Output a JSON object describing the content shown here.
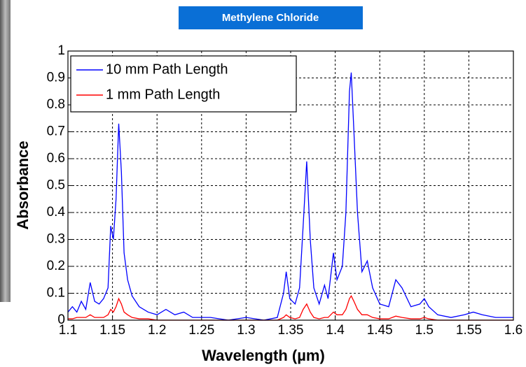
{
  "chart_data": {
    "type": "line",
    "title": "Methylene Chloride",
    "xlabel": "Wavelength (µm)",
    "ylabel": "Absorbance",
    "xlim": [
      1.1,
      1.6
    ],
    "ylim": [
      0,
      1
    ],
    "xticks": [
      1.1,
      1.15,
      1.2,
      1.25,
      1.3,
      1.35,
      1.4,
      1.45,
      1.5,
      1.55,
      1.6
    ],
    "yticks": [
      0,
      0.1,
      0.2,
      0.3,
      0.4,
      0.5,
      0.6,
      0.7,
      0.8,
      0.9,
      1
    ],
    "grid": true,
    "legend": "upper-left",
    "x": [
      1.1,
      1.105,
      1.11,
      1.115,
      1.12,
      1.125,
      1.13,
      1.135,
      1.14,
      1.145,
      1.148,
      1.151,
      1.154,
      1.157,
      1.16,
      1.163,
      1.167,
      1.172,
      1.18,
      1.19,
      1.2,
      1.21,
      1.22,
      1.23,
      1.24,
      1.26,
      1.28,
      1.3,
      1.32,
      1.335,
      1.342,
      1.345,
      1.349,
      1.355,
      1.36,
      1.364,
      1.368,
      1.372,
      1.376,
      1.382,
      1.388,
      1.392,
      1.398,
      1.402,
      1.408,
      1.412,
      1.416,
      1.418,
      1.421,
      1.425,
      1.43,
      1.436,
      1.442,
      1.45,
      1.46,
      1.468,
      1.475,
      1.485,
      1.495,
      1.5,
      1.505,
      1.515,
      1.53,
      1.545,
      1.555,
      1.565,
      1.58,
      1.6
    ],
    "series": [
      {
        "name": "10 mm Path Length",
        "color": "#0000ff",
        "values": [
          0.03,
          0.05,
          0.03,
          0.07,
          0.04,
          0.14,
          0.07,
          0.06,
          0.08,
          0.12,
          0.35,
          0.3,
          0.45,
          0.73,
          0.55,
          0.25,
          0.15,
          0.09,
          0.05,
          0.03,
          0.02,
          0.04,
          0.02,
          0.03,
          0.01,
          0.01,
          0,
          0.01,
          0,
          0.01,
          0.1,
          0.18,
          0.08,
          0.06,
          0.12,
          0.35,
          0.59,
          0.3,
          0.12,
          0.06,
          0.13,
          0.08,
          0.25,
          0.15,
          0.2,
          0.4,
          0.85,
          0.92,
          0.7,
          0.4,
          0.18,
          0.22,
          0.12,
          0.06,
          0.05,
          0.15,
          0.12,
          0.05,
          0.06,
          0.08,
          0.05,
          0.02,
          0.01,
          0.02,
          0.03,
          0.02,
          0.01,
          0.01
        ]
      },
      {
        "name": "1 mm Path Length",
        "color": "#ff0000",
        "values": [
          0.005,
          0.005,
          0.01,
          0.01,
          0.01,
          0.02,
          0.01,
          0.01,
          0.01,
          0.02,
          0.04,
          0.03,
          0.05,
          0.08,
          0.06,
          0.03,
          0.02,
          0.01,
          0.005,
          0.005,
          0,
          0,
          0,
          0,
          0,
          0,
          0,
          0,
          0,
          0,
          0.01,
          0.02,
          0.01,
          0.005,
          0.01,
          0.04,
          0.06,
          0.03,
          0.01,
          0.005,
          0.01,
          0.01,
          0.03,
          0.02,
          0.02,
          0.04,
          0.08,
          0.09,
          0.07,
          0.04,
          0.02,
          0.02,
          0.01,
          0.005,
          0.005,
          0.015,
          0.01,
          0.005,
          0.005,
          0.01,
          0.005,
          0,
          0,
          0,
          0,
          0,
          0,
          0
        ]
      }
    ]
  }
}
